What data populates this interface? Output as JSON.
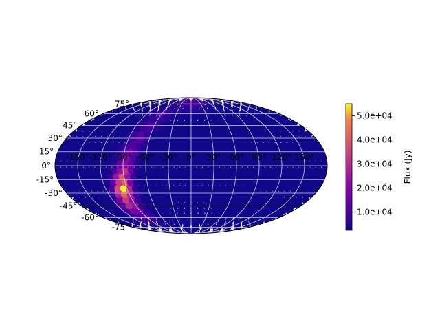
{
  "chart_data": {
    "type": "scatter",
    "projection": "mollweide",
    "grid": true,
    "title": "",
    "lat_tick_labels": [
      "75°",
      "60°",
      "45°",
      "30°",
      "15°",
      "0°",
      "-15°",
      "-30°",
      "-45°",
      "-60°",
      "-75°"
    ],
    "lat_ticks": [
      75,
      60,
      45,
      30,
      15,
      0,
      -15,
      -30,
      -45,
      -60,
      -75
    ],
    "lon_tick_labels": [
      "-150°",
      "-120°",
      "-90°",
      "-60°",
      "-30°",
      "0°",
      "30°",
      "60°",
      "90°",
      "120°",
      "150°"
    ],
    "lon_ticks": [
      -150,
      -120,
      -90,
      -60,
      -30,
      0,
      30,
      60,
      90,
      120,
      150
    ],
    "colorbar": {
      "label": "Flux (Jy)",
      "colormap": "plasma",
      "range": [
        2500,
        55000
      ],
      "tick_values": [
        10000,
        20000,
        30000,
        40000,
        50000
      ],
      "tick_labels": [
        "1.0e+04",
        "2.0e+04",
        "3.0e+04",
        "4.0e+04",
        "5.0e+04"
      ]
    },
    "background_flux": 3000,
    "galactic_plane_points": [
      {
        "lon": -60,
        "lat": 60,
        "flux": 10000
      },
      {
        "lon": -68,
        "lat": 45,
        "flux": 11000
      },
      {
        "lon": -75,
        "lat": 30,
        "flux": 14000
      },
      {
        "lon": -82,
        "lat": 15,
        "flux": 18000
      },
      {
        "lon": -85,
        "lat": 5,
        "flux": 22000
      },
      {
        "lon": -88,
        "lat": -5,
        "flux": 30000
      },
      {
        "lon": -92,
        "lat": -15,
        "flux": 45000
      },
      {
        "lon": -95,
        "lat": -25,
        "flux": 55000
      },
      {
        "lon": -97,
        "lat": -32,
        "flux": 42000
      },
      {
        "lon": -98,
        "lat": -40,
        "flux": 35000
      },
      {
        "lon": -97,
        "lat": -48,
        "flux": 22000
      },
      {
        "lon": -92,
        "lat": -58,
        "flux": 12000
      },
      {
        "lon": 5,
        "lat": 78,
        "flux": 12000
      },
      {
        "lon": -20,
        "lat": 75,
        "flux": 9000
      }
    ]
  }
}
